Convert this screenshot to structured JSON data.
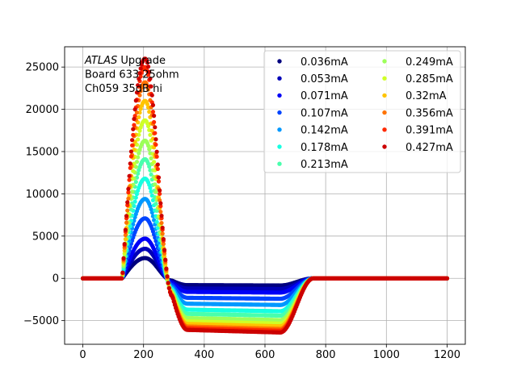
{
  "chart_data": {
    "type": "scatter",
    "annotation": {
      "lines": [
        [
          {
            "text": "ATLAS",
            "italic": true
          },
          {
            "text": " Upgrade",
            "italic": false
          }
        ],
        [
          {
            "text": " Board 633 25ohm",
            "italic": false
          }
        ],
        [
          {
            "text": " Ch059 35dB hi",
            "italic": false
          }
        ]
      ]
    },
    "xlim": [
      -60,
      1260
    ],
    "ylim": [
      -7800,
      27400
    ],
    "x_ticks": [
      0,
      200,
      400,
      600,
      800,
      1000,
      1200
    ],
    "y_ticks": [
      -5000,
      0,
      5000,
      10000,
      15000,
      20000,
      25000
    ],
    "grid": true,
    "legend": {
      "position": "upper right",
      "columns": 2
    },
    "sample_x": {
      "start": 0,
      "end": 1200,
      "step": 3.125
    },
    "pulse_shape": {
      "rise_start": 130,
      "peak_x": 205,
      "undershoot_start": 295,
      "undershoot_end": 650,
      "recovery_end": 760
    },
    "series": [
      {
        "name": "0.036mA",
        "color": "#00007f",
        "peak": 2400,
        "undershoot": -800
      },
      {
        "name": "0.053mA",
        "color": "#0000b8",
        "peak": 3500,
        "undershoot": -1200
      },
      {
        "name": "0.071mA",
        "color": "#0000f6",
        "peak": 4700,
        "undershoot": -1600
      },
      {
        "name": "0.107mA",
        "color": "#0044ff",
        "peak": 7100,
        "undershoot": -2300
      },
      {
        "name": "0.142mA",
        "color": "#0098ff",
        "peak": 9400,
        "undershoot": -3000
      },
      {
        "name": "0.178mA",
        "color": "#16ffe1",
        "peak": 11800,
        "undershoot": -3700
      },
      {
        "name": "0.213mA",
        "color": "#49ffad",
        "peak": 14100,
        "undershoot": -4200
      },
      {
        "name": "0.249mA",
        "color": "#9dff5a",
        "peak": 16300,
        "undershoot": -4700
      },
      {
        "name": "0.285mA",
        "color": "#d0ff26",
        "peak": 18700,
        "undershoot": -5100
      },
      {
        "name": "0.32mA",
        "color": "#ffc400",
        "peak": 21000,
        "undershoot": -5400
      },
      {
        "name": "0.356mA",
        "color": "#ff7300",
        "peak": 23200,
        "undershoot": -5700
      },
      {
        "name": "0.391mA",
        "color": "#ff2900",
        "peak": 25000,
        "undershoot": -5900
      },
      {
        "name": "0.427mA",
        "color": "#cc0000",
        "peak": 26000,
        "undershoot": -6100
      }
    ]
  }
}
